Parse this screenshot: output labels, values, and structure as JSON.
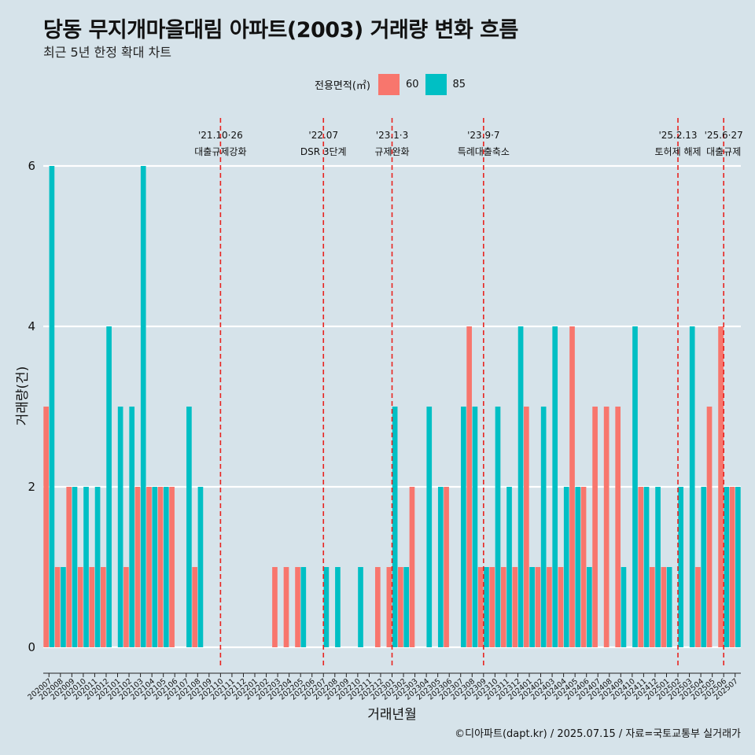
{
  "title": "당동 무지개마을대림 아파트(2003) 거래량 변화 흐름",
  "subtitle": "최근 5년 한정 확대 차트",
  "caption": "©디아파트(dapt.kr) / 2025.07.15 / 자료=국토교통부 실거래가",
  "legend": {
    "title": "전용면적(㎡)",
    "items": [
      {
        "label": "60",
        "color": "#f8766d"
      },
      {
        "label": "85",
        "color": "#00bfc4"
      }
    ]
  },
  "chart_data": {
    "type": "bar",
    "xlabel": "거래년월",
    "ylabel": "거래량(건)",
    "ylim": [
      0,
      6
    ],
    "yticks": [
      0,
      2,
      4,
      6
    ],
    "grid": true,
    "legend_position": "top",
    "categories": [
      "202007",
      "202008",
      "202009",
      "202010",
      "202011",
      "202012",
      "202101",
      "202102",
      "202103",
      "202104",
      "202105",
      "202106",
      "202107",
      "202108",
      "202109",
      "202110",
      "202111",
      "202112",
      "202201",
      "202202",
      "202203",
      "202204",
      "202205",
      "202206",
      "202207",
      "202208",
      "202209",
      "202210",
      "202211",
      "202212",
      "202301",
      "202302",
      "202303",
      "202304",
      "202305",
      "202306",
      "202307",
      "202308",
      "202309",
      "202310",
      "202311",
      "202312",
      "202401",
      "202402",
      "202403",
      "202404",
      "202405",
      "202406",
      "202407",
      "202408",
      "202409",
      "202410",
      "202411",
      "202412",
      "202501",
      "202502",
      "202503",
      "202504",
      "202505",
      "202506",
      "202507"
    ],
    "series": [
      {
        "name": "60",
        "color": "#f8766d",
        "values": [
          3,
          1,
          2,
          1,
          1,
          1,
          0,
          1,
          2,
          2,
          2,
          2,
          0,
          1,
          0,
          0,
          0,
          0,
          0,
          0,
          1,
          1,
          1,
          0,
          0,
          0,
          0,
          0,
          0,
          1,
          1,
          1,
          2,
          0,
          0,
          2,
          0,
          4,
          1,
          1,
          1,
          1,
          3,
          1,
          1,
          1,
          4,
          2,
          3,
          3,
          3,
          0,
          2,
          1,
          1,
          0,
          0,
          1,
          3,
          4,
          2
        ]
      },
      {
        "name": "85",
        "color": "#00bfc4",
        "values": [
          6,
          1,
          2,
          2,
          2,
          4,
          3,
          3,
          6,
          2,
          2,
          0,
          3,
          2,
          0,
          0,
          0,
          0,
          0,
          0,
          0,
          0,
          1,
          0,
          1,
          1,
          0,
          1,
          0,
          0,
          3,
          1,
          0,
          3,
          2,
          0,
          3,
          3,
          1,
          3,
          2,
          4,
          1,
          3,
          4,
          2,
          2,
          1,
          0,
          0,
          1,
          4,
          2,
          2,
          1,
          2,
          4,
          2,
          0,
          2,
          2
        ]
      }
    ],
    "annotations": [
      {
        "date": "'21.10·26",
        "label": "대출규제강화",
        "at": "202110"
      },
      {
        "date": "'22.07",
        "label": "DSR 3단계",
        "at": "202207"
      },
      {
        "date": "'23.1·3",
        "label": "규제완화",
        "at": "202301"
      },
      {
        "date": "'23.9·7",
        "label": "특례대출축소",
        "at": "202309"
      },
      {
        "date": "'25.2.13",
        "label": "토허제 해제",
        "at": "202502"
      },
      {
        "date": "'25.6·27",
        "label": "대출규제",
        "at": "202506"
      }
    ]
  }
}
